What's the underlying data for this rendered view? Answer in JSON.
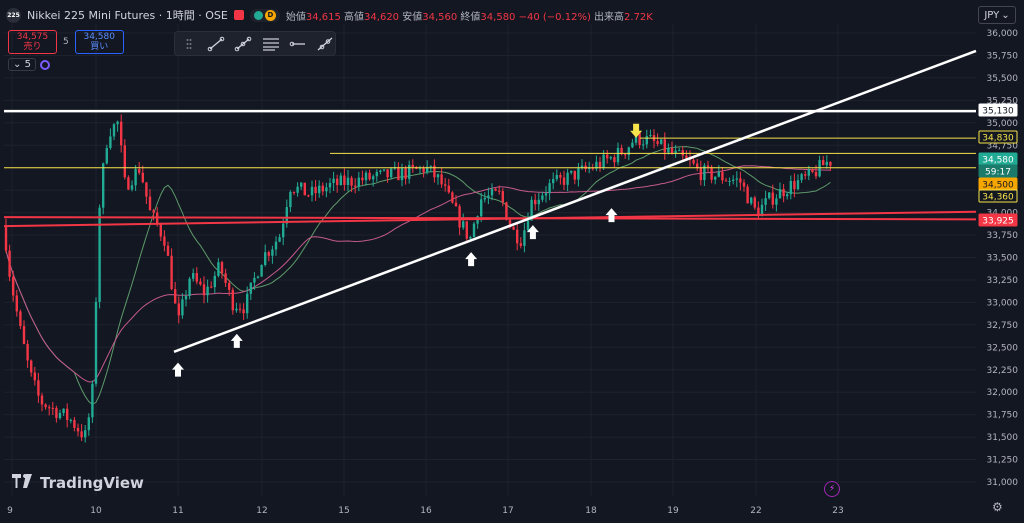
{
  "header": {
    "logo_text": "225",
    "title": "Nikkei 225 Mini Futures · 1時間 · OSE",
    "status_badge": "D",
    "ohlc": [
      {
        "label": "始値",
        "value": "34,615"
      },
      {
        "label": "高値",
        "value": "34,620"
      },
      {
        "label": "安値",
        "value": "34,560"
      },
      {
        "label": "終値",
        "value": "34,580"
      },
      {
        "label": "",
        "value": "−40 (−0.12%)"
      },
      {
        "label": "出来高",
        "value": "2.72K"
      }
    ]
  },
  "trade": {
    "sell_price": "34,575",
    "sell_label": "売り",
    "quantity": "5",
    "buy_price": "34,580",
    "buy_label": "買い"
  },
  "indicator": {
    "label": "5"
  },
  "currency": {
    "label": "JPY",
    "arrow": "⌄"
  },
  "branding": {
    "logo_mark": "𝟭𝟳",
    "name": "TradingView"
  },
  "icons": {
    "settings": "gear-icon",
    "lightning": "lightning-icon"
  },
  "colors": {
    "background": "#131722",
    "up": "#22ab94",
    "down": "#f23645",
    "trendline": "#ffffff",
    "yellow": "#f7e34b",
    "red_line": "#f23645",
    "ma_short": "#5d9a6a",
    "ma_long": "#c45a8a"
  },
  "chart_data": {
    "type": "candlestick",
    "title": "",
    "xlabel": "",
    "ylabel": "",
    "ylim": [
      30875,
      36075
    ],
    "y_ticks": [
      "36,000",
      "35,750",
      "35,500",
      "35,250",
      "35,000",
      "34,750",
      "34,500",
      "34,250",
      "34,000",
      "33,750",
      "33,500",
      "33,250",
      "33,000",
      "32,750",
      "32,500",
      "32,250",
      "32,000",
      "31,750",
      "31,500",
      "31,250",
      "31,000"
    ],
    "x_ticks": [
      "9",
      "10",
      "11",
      "12",
      "15",
      "16",
      "17",
      "18",
      "19",
      "22",
      "23"
    ],
    "price_labels": [
      {
        "text": "35,130",
        "value": 35130,
        "style": "white"
      },
      {
        "text": "34,830",
        "value": 34830,
        "style": "yellow"
      },
      {
        "text": "34,580",
        "value": 34580,
        "style": "green"
      },
      {
        "text": "59:17",
        "value": 34460,
        "style": "green-dark"
      },
      {
        "text": "34,500",
        "value": 34500,
        "style": "orange"
      },
      {
        "text": "34,360",
        "value": 34360,
        "style": "yellow"
      },
      {
        "text": "33,925",
        "value": 33925,
        "style": "red"
      }
    ],
    "horizontal_lines": [
      {
        "value": 35130,
        "color": "white"
      },
      {
        "value": 34830,
        "color": "yellow"
      },
      {
        "value": 34500,
        "color": "yellow"
      },
      {
        "value": 34660,
        "color": "yellow"
      }
    ],
    "trendlines": [
      {
        "from": [
          "11",
          32450
        ],
        "to": [
          "23+",
          35800
        ],
        "color": "white"
      }
    ],
    "support_lines": [
      {
        "from": [
          "9",
          33850
        ],
        "to": [
          "23+",
          34010
        ],
        "color": "red"
      },
      {
        "from": [
          "9",
          33950
        ],
        "to": [
          "23+",
          33925
        ],
        "color": "red"
      }
    ],
    "up_arrows": [
      {
        "x": "11",
        "value": 32330
      },
      {
        "x": "11.7",
        "value": 32650
      },
      {
        "x": "16.55",
        "value": 33560
      },
      {
        "x": "17.3",
        "value": 33860
      },
      {
        "x": "18.25",
        "value": 34050
      }
    ],
    "down_arrows": [
      {
        "x": "18.55",
        "value": 34990
      }
    ]
  }
}
